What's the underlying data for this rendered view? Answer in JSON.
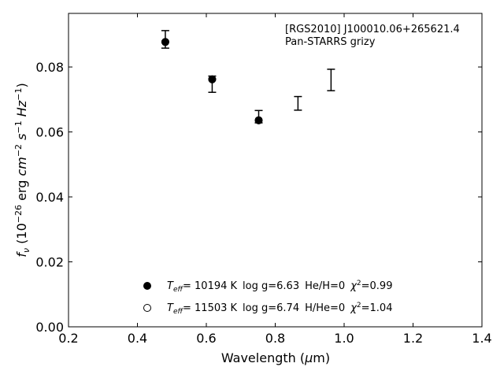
{
  "chart_data": {
    "type": "scatter",
    "title": "",
    "xlabel": "Wavelength (μm)",
    "ylabel": "f_ν (10^-26 erg cm^-2 s^-1 Hz^-1)",
    "xlim": [
      0.2,
      1.4
    ],
    "ylim": [
      0.0,
      0.0965
    ],
    "xticks": [
      0.2,
      0.4,
      0.6,
      0.8,
      1.0,
      1.2,
      1.4
    ],
    "xtick_labels": [
      "0.2",
      "0.4",
      "0.6",
      "0.8",
      "1.0",
      "1.2",
      "1.4"
    ],
    "yticks": [
      0.0,
      0.02,
      0.04,
      0.06,
      0.08
    ],
    "ytick_labels": [
      "0.00",
      "0.02",
      "0.04",
      "0.06",
      "0.08"
    ],
    "grid": false,
    "annotation": {
      "line1": "[RGS2010] J100010.06+265621.4",
      "line2": "Pan-STARRS grizy"
    },
    "observed": {
      "x": [
        0.481,
        0.617,
        0.752,
        0.866,
        0.962
      ],
      "y": [
        0.0885,
        0.0747,
        0.0647,
        0.0688,
        0.076
      ],
      "yerr": [
        0.0027,
        0.0025,
        0.0019,
        0.0021,
        0.0033
      ]
    },
    "series": [
      {
        "name": "T_eff= 10194 K  log g=6.63  He/H=0  χ²=0.99",
        "marker": "filled-circle",
        "x": [
          0.481,
          0.617,
          0.752
        ],
        "y": [
          0.0877,
          0.0762,
          0.0636
        ]
      },
      {
        "name": "T_eff= 11503 K  log g=6.74  H/He=0  χ²=1.04",
        "marker": "open-circle",
        "x": [
          0.481,
          0.617,
          0.752
        ],
        "y": [
          0.0877,
          0.0762,
          0.0636
        ]
      }
    ],
    "legend": {
      "placement": "lower-center",
      "entries": [
        {
          "teff": "= 10194 K",
          "logg": "log g=6.63",
          "comp": "He/H=0",
          "chi": "=0.99"
        },
        {
          "teff": "= 11503 K",
          "logg": "log g=6.74",
          "comp": "H/He=0",
          "chi": "=1.04"
        }
      ]
    }
  }
}
